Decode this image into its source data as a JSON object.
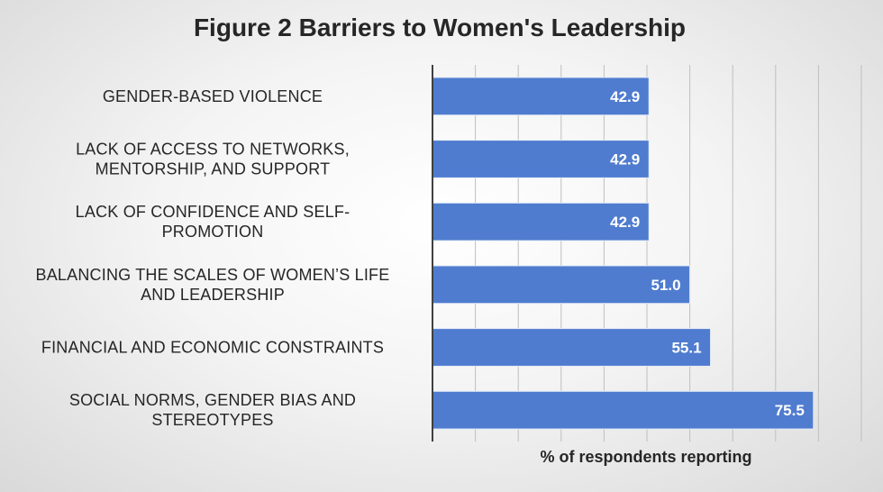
{
  "chart_data": {
    "type": "bar",
    "orientation": "horizontal",
    "title": "Figure 2 Barriers to Women's Leadership",
    "xlabel": "% of respondents reporting",
    "ylabel": "",
    "categories": [
      [
        "GENDER-BASED VIOLENCE"
      ],
      [
        "LACK OF ACCESS TO NETWORKS,",
        "MENTORSHIP, AND SUPPORT"
      ],
      [
        "LACK OF CONFIDENCE AND SELF-",
        "PROMOTION"
      ],
      [
        "BALANCING THE SCALES OF WOMEN’S LIFE",
        "AND LEADERSHIP"
      ],
      [
        "FINANCIAL AND ECONOMIC CONSTRAINTS"
      ],
      [
        "SOCIAL NORMS, GENDER BIAS AND",
        "STEREOTYPES"
      ]
    ],
    "values": [
      42.9,
      42.9,
      42.9,
      51.0,
      55.1,
      75.5
    ],
    "value_labels": [
      "42.9",
      "42.9",
      "42.9",
      "51.0",
      "55.1",
      "75.5"
    ],
    "xlim": [
      0,
      85
    ],
    "grid": true,
    "legend": "none",
    "colors": {
      "bar": "#4f7ccf",
      "label": "#ffffff",
      "text": "#262626"
    }
  }
}
